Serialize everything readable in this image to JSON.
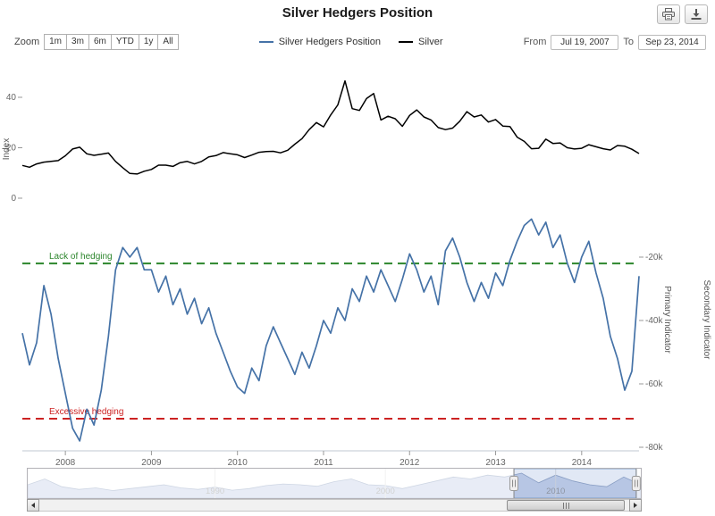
{
  "header": {
    "title": "Silver Hedgers Position"
  },
  "toolbar": {
    "zoom_label": "Zoom",
    "zoom_buttons": [
      "1m",
      "3m",
      "6m",
      "YTD",
      "1y",
      "All"
    ],
    "from_label": "From",
    "from_value": "Jul 19, 2007",
    "to_label": "To",
    "to_value": "Sep 23, 2014"
  },
  "legend": [
    {
      "label": "Silver Hedgers Position",
      "color": "#4572a7"
    },
    {
      "label": "Silver",
      "color": "#000000"
    }
  ],
  "chart_data": [
    {
      "type": "line",
      "pane": "top",
      "ylabel": "Index",
      "ylim": [
        0,
        52
      ],
      "grid": false,
      "yticks": [
        {
          "value": 0,
          "label": "0"
        },
        {
          "value": 20,
          "label": "20"
        },
        {
          "value": 40,
          "label": "40"
        }
      ],
      "x": [
        "2007-07",
        "2007-08",
        "2007-09",
        "2007-10",
        "2007-11",
        "2007-12",
        "2008-01",
        "2008-02",
        "2008-03",
        "2008-04",
        "2008-05",
        "2008-06",
        "2008-07",
        "2008-08",
        "2008-09",
        "2008-10",
        "2008-11",
        "2008-12",
        "2009-01",
        "2009-02",
        "2009-03",
        "2009-04",
        "2009-05",
        "2009-06",
        "2009-07",
        "2009-08",
        "2009-09",
        "2009-10",
        "2009-11",
        "2009-12",
        "2010-01",
        "2010-02",
        "2010-03",
        "2010-04",
        "2010-05",
        "2010-06",
        "2010-07",
        "2010-08",
        "2010-09",
        "2010-10",
        "2010-11",
        "2010-12",
        "2011-01",
        "2011-02",
        "2011-03",
        "2011-04",
        "2011-05",
        "2011-06",
        "2011-07",
        "2011-08",
        "2011-09",
        "2011-10",
        "2011-11",
        "2011-12",
        "2012-01",
        "2012-02",
        "2012-03",
        "2012-04",
        "2012-05",
        "2012-06",
        "2012-07",
        "2012-08",
        "2012-09",
        "2012-10",
        "2012-11",
        "2012-12",
        "2013-01",
        "2013-02",
        "2013-03",
        "2013-04",
        "2013-05",
        "2013-06",
        "2013-07",
        "2013-08",
        "2013-09",
        "2013-10",
        "2013-11",
        "2013-12",
        "2014-01",
        "2014-02",
        "2014-03",
        "2014-04",
        "2014-05",
        "2014-06",
        "2014-07",
        "2014-08",
        "2014-09"
      ],
      "series": [
        {
          "name": "Silver",
          "color": "#000000",
          "values": [
            13.0,
            12.3,
            13.6,
            14.3,
            14.6,
            14.9,
            16.8,
            19.5,
            20.2,
            17.6,
            17.0,
            17.4,
            17.9,
            14.6,
            12.1,
            9.8,
            9.6,
            10.7,
            11.4,
            13.1,
            13.1,
            12.6,
            14.1,
            14.6,
            13.6,
            14.6,
            16.4,
            16.9,
            18.1,
            17.6,
            17.2,
            16.1,
            17.1,
            18.2,
            18.5,
            18.6,
            18.0,
            19.0,
            21.4,
            23.6,
            27.2,
            30.0,
            28.3,
            33.0,
            37.0,
            46.5,
            35.5,
            34.8,
            39.5,
            41.5,
            31.0,
            32.5,
            31.5,
            28.5,
            32.8,
            35.0,
            32.2,
            31.0,
            28.0,
            27.2,
            27.8,
            30.5,
            34.3,
            32.2,
            33.0,
            30.2,
            31.2,
            28.6,
            28.4,
            24.2,
            22.5,
            19.6,
            19.8,
            23.4,
            21.7,
            21.9,
            20.0,
            19.5,
            19.8,
            21.2,
            20.4,
            19.6,
            19.1,
            20.9,
            20.6,
            19.4,
            17.7
          ]
        }
      ]
    },
    {
      "type": "line",
      "pane": "bottom",
      "unit": "thousand contracts (net position)",
      "x_ref": "top",
      "ylim": [
        -82,
        -4
      ],
      "grid": false,
      "yticks": [
        {
          "value": -20,
          "label": "-20k"
        },
        {
          "value": -40,
          "label": "-40k"
        },
        {
          "value": -60,
          "label": "-60k"
        },
        {
          "value": -80,
          "label": "-80k"
        }
      ],
      "xticks": [
        {
          "index": 6,
          "label": "2008"
        },
        {
          "index": 18,
          "label": "2009"
        },
        {
          "index": 30,
          "label": "2010"
        },
        {
          "index": 42,
          "label": "2011"
        },
        {
          "index": 54,
          "label": "2012"
        },
        {
          "index": 66,
          "label": "2013"
        },
        {
          "index": 78,
          "label": "2014"
        }
      ],
      "series": [
        {
          "name": "Silver Hedgers Position",
          "color": "#4572a7",
          "values": [
            -44,
            -54,
            -47,
            -29,
            -38,
            -52,
            -63,
            -74,
            -78,
            -68,
            -73,
            -62,
            -45,
            -24,
            -17,
            -20,
            -17,
            -24,
            -24,
            -31,
            -26,
            -35,
            -30,
            -38,
            -33,
            -41,
            -36,
            -44,
            -50,
            -56,
            -61,
            -63,
            -55,
            -59,
            -48,
            -42,
            -47,
            -52,
            -57,
            -50,
            -55,
            -48,
            -40,
            -44,
            -36,
            -40,
            -30,
            -34,
            -26,
            -31,
            -24,
            -29,
            -34,
            -27,
            -19,
            -24,
            -31,
            -26,
            -35,
            -18,
            -14,
            -20,
            -28,
            -34,
            -28,
            -33,
            -25,
            -29,
            -21,
            -15,
            -10,
            -8,
            -13,
            -9,
            -17,
            -13,
            -22,
            -28,
            -20,
            -15,
            -25,
            -33,
            -45,
            -52,
            -62,
            -56,
            -26
          ]
        }
      ],
      "plot_lines": [
        {
          "label": "Lack of hedging",
          "value": -22,
          "color": "#2d862d",
          "style": "dashed"
        },
        {
          "label": "Excessive hedging",
          "value": -71,
          "color": "#cc2222",
          "style": "dashed"
        }
      ],
      "axis_titles_right": [
        {
          "text": "Primary Indicator",
          "color": "#4572a7"
        },
        {
          "text": "Secondary Indicator",
          "color": "#16324c"
        }
      ]
    },
    {
      "type": "area",
      "pane": "navigator",
      "xlim": [
        1979,
        2015
      ],
      "x": [
        1979,
        1980,
        1981,
        1982,
        1983,
        1984,
        1985,
        1986,
        1987,
        1988,
        1989,
        1990,
        1991,
        1992,
        1993,
        1994,
        1995,
        1996,
        1997,
        1998,
        1999,
        2000,
        2001,
        2002,
        2003,
        2004,
        2005,
        2006,
        2007,
        2008,
        2009,
        2010,
        2011,
        2012,
        2013,
        2014,
        2015
      ],
      "values": [
        30,
        45,
        25,
        18,
        22,
        15,
        20,
        25,
        30,
        22,
        18,
        24,
        16,
        20,
        28,
        32,
        30,
        26,
        38,
        45,
        30,
        28,
        20,
        30,
        40,
        50,
        45,
        55,
        50,
        60,
        35,
        55,
        40,
        30,
        25,
        50,
        30
      ],
      "xticks": [
        {
          "value": 1990,
          "label": "1990"
        },
        {
          "value": 2000,
          "label": "2000"
        },
        {
          "value": 2010,
          "label": "2010"
        }
      ],
      "selection": [
        2007.55,
        2014.73
      ]
    }
  ]
}
